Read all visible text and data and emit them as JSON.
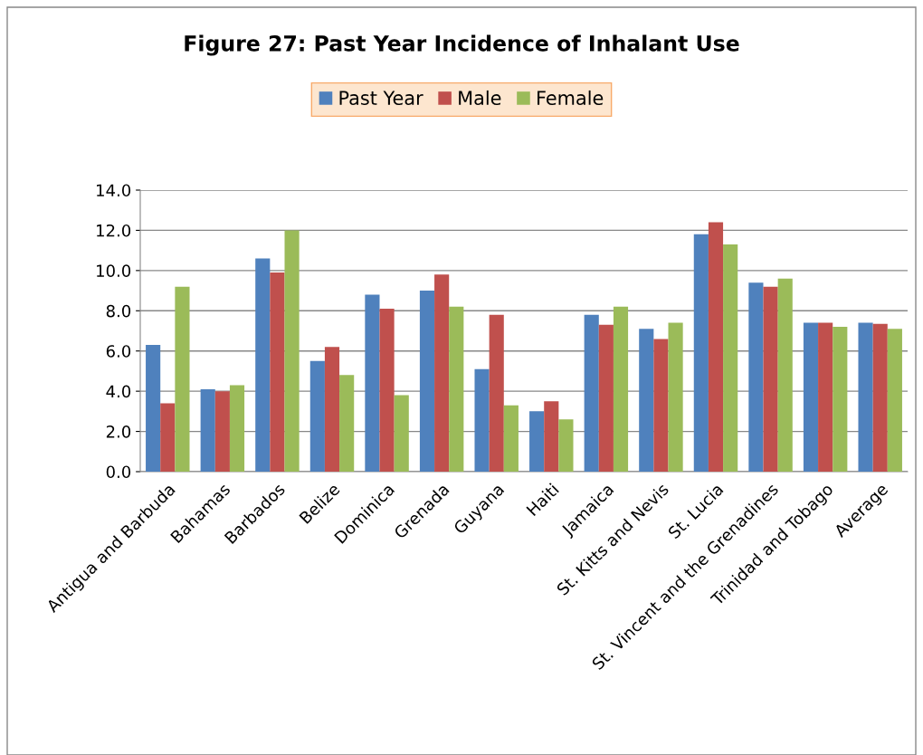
{
  "chart_data": {
    "type": "bar",
    "title": "Figure 27: Past Year Incidence of Inhalant Use",
    "categories": [
      "Antigua and Barbuda",
      "Bahamas",
      "Barbados",
      "Belize",
      "Dominica",
      "Grenada",
      "Guyana",
      "Haiti",
      "Jamaica",
      "St. Kitts and Nevis",
      "St. Lucia",
      "St. Vincent and the Grenadines",
      "Trinidad and Tobago",
      "Average"
    ],
    "series": [
      {
        "name": "Past Year",
        "color": "#4f81bd",
        "values": [
          6.3,
          4.1,
          10.6,
          5.5,
          8.8,
          9.0,
          5.1,
          3.0,
          7.8,
          7.1,
          11.8,
          9.4,
          7.4,
          7.4
        ]
      },
      {
        "name": "Male",
        "color": "#c0504d",
        "values": [
          3.4,
          4.0,
          9.9,
          6.2,
          8.1,
          9.8,
          7.8,
          3.5,
          7.3,
          6.6,
          12.4,
          9.2,
          7.4,
          7.35
        ]
      },
      {
        "name": "Female",
        "color": "#9bbb59",
        "values": [
          9.2,
          4.3,
          12.0,
          4.8,
          3.8,
          8.2,
          3.3,
          2.6,
          8.2,
          7.4,
          11.3,
          9.6,
          7.2,
          7.1
        ]
      }
    ],
    "ylim": [
      0,
      14
    ],
    "yticks": [
      {
        "value": 0,
        "label": "0.0"
      },
      {
        "value": 2,
        "label": "2.0"
      },
      {
        "value": 4,
        "label": "4.0"
      },
      {
        "value": 6,
        "label": "6.0"
      },
      {
        "value": 8,
        "label": "8.0"
      },
      {
        "value": 10,
        "label": "10.0"
      },
      {
        "value": 12,
        "label": "12.0"
      },
      {
        "value": 14,
        "label": "14.0"
      }
    ],
    "grid": "y",
    "legend": "top"
  }
}
